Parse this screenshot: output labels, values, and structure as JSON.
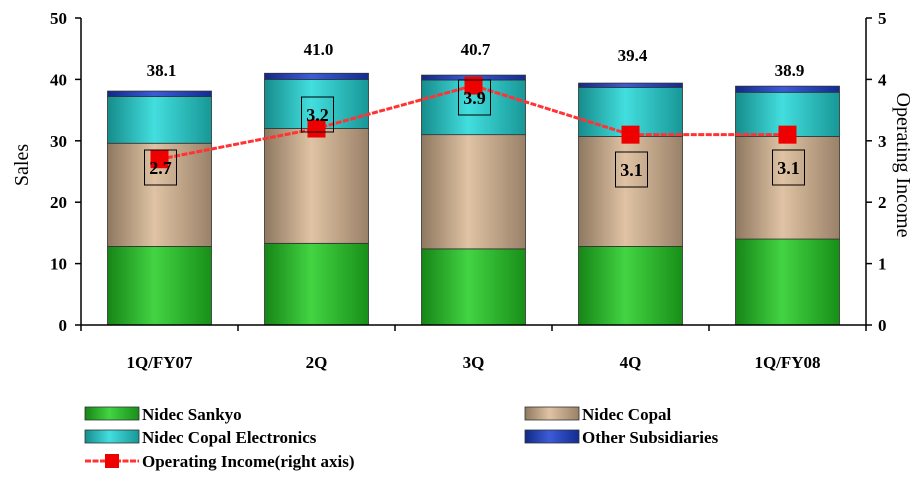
{
  "chart_data": {
    "type": "bar",
    "stacked": true,
    "categories": [
      "1Q/FY07",
      "2Q",
      "3Q",
      "4Q",
      "1Q/FY08"
    ],
    "series": [
      {
        "name": "Nidec Sankyo",
        "values": [
          12.8,
          13.3,
          12.4,
          12.8,
          14.0
        ],
        "color": "#22cc22"
      },
      {
        "name": "Nidec Copal",
        "values": [
          16.8,
          18.7,
          18.6,
          17.9,
          16.7
        ],
        "color": "#dbb894"
      },
      {
        "name": "Nidec Copal Electronics",
        "values": [
          7.6,
          8.0,
          8.9,
          8.0,
          7.2
        ],
        "color": "#22d8d8"
      },
      {
        "name": "Other Subsidiaries",
        "values": [
          0.9,
          1.0,
          0.8,
          0.7,
          1.0
        ],
        "color": "#1a3fd0"
      }
    ],
    "totals": [
      "38.1",
      "41.0",
      "40.7",
      "39.4",
      "38.9"
    ],
    "line_series": {
      "name": "Operating Income(right axis)",
      "values": [
        2.7,
        3.2,
        3.9,
        3.1,
        3.1
      ],
      "labels": [
        "2.7",
        "3.2",
        "3.9",
        "3.1",
        "3.1"
      ],
      "color": "#ff3333",
      "marker_color": "#ee0000"
    },
    "ylabel": "Sales",
    "y2label": "Operating Income",
    "ylim": [
      0,
      50
    ],
    "y2lim": [
      0,
      5
    ],
    "yticks": [
      "0",
      "10",
      "20",
      "30",
      "40",
      "50"
    ],
    "y2ticks": [
      "0",
      "1",
      "2",
      "3",
      "4",
      "5"
    ],
    "legend_position": "bottom",
    "grid": false
  }
}
